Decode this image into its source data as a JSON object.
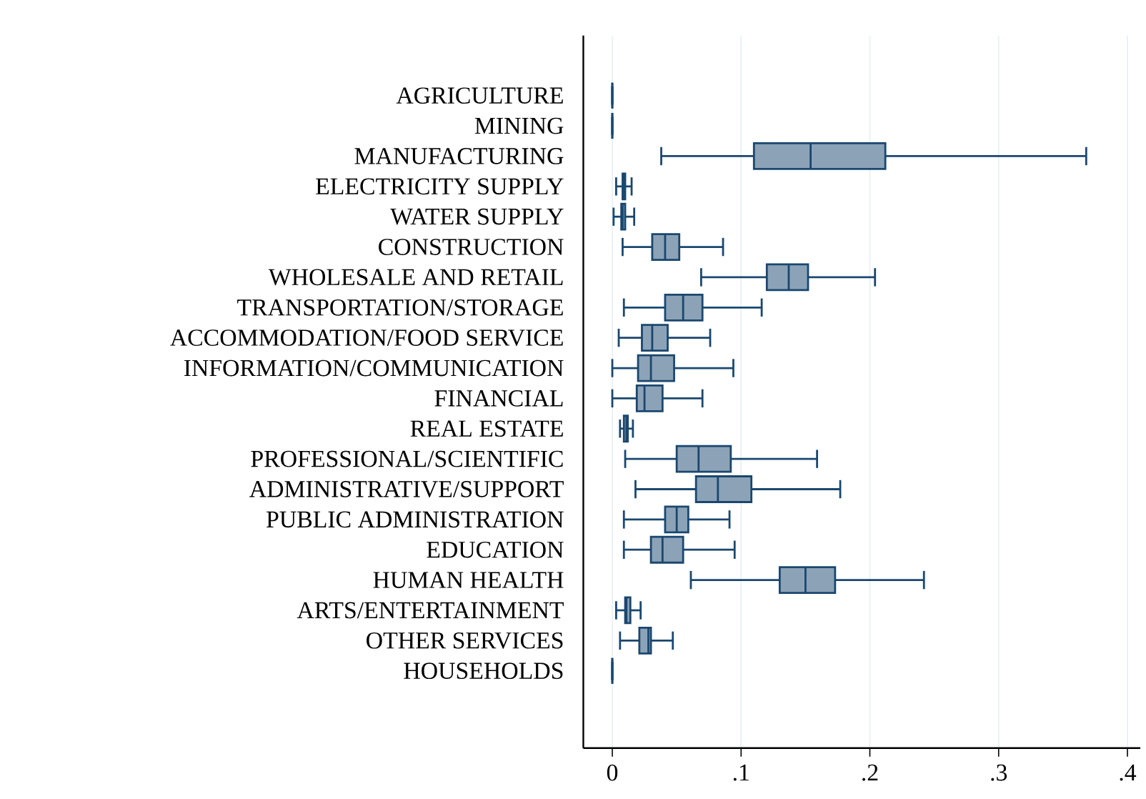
{
  "chart_data": {
    "type": "box",
    "orientation": "horizontal",
    "color": "#1a476f",
    "grid": "x",
    "categories": [
      "AGRICULTURE",
      "MINING",
      "MANUFACTURING",
      "ELECTRICITY SUPPLY",
      "WATER SUPPLY",
      "CONSTRUCTION",
      "WHOLESALE AND RETAIL",
      "TRANSPORTATION/STORAGE",
      "ACCOMMODATION/FOOD SERVICE",
      "INFORMATION/COMMUNICATION",
      "FINANCIAL",
      "REAL ESTATE",
      "PROFESSIONAL/SCIENTIFIC",
      "ADMINISTRATIVE/SUPPORT",
      "PUBLIC ADMINISTRATION",
      "EDUCATION",
      "HUMAN HEALTH",
      "ARTS/ENTERTAINMENT",
      "OTHER SERVICES",
      "HOUSEHOLDS"
    ],
    "boxes": [
      {
        "low": 0,
        "q1": 0,
        "median": 0,
        "q3": 0,
        "high": 0
      },
      {
        "low": 0,
        "q1": 0,
        "median": 0,
        "q3": 0,
        "high": 0
      },
      {
        "low": 0.038,
        "q1": 0.11,
        "median": 0.154,
        "q3": 0.212,
        "high": 0.368
      },
      {
        "low": 0.003,
        "q1": 0.008,
        "median": 0.009,
        "q3": 0.01,
        "high": 0.015
      },
      {
        "low": 0.001,
        "q1": 0.007,
        "median": 0.008,
        "q3": 0.01,
        "high": 0.017
      },
      {
        "low": 0.008,
        "q1": 0.031,
        "median": 0.041,
        "q3": 0.052,
        "high": 0.086
      },
      {
        "low": 0.069,
        "q1": 0.12,
        "median": 0.137,
        "q3": 0.152,
        "high": 0.204
      },
      {
        "low": 0.009,
        "q1": 0.041,
        "median": 0.055,
        "q3": 0.07,
        "high": 0.116
      },
      {
        "low": 0.005,
        "q1": 0.023,
        "median": 0.031,
        "q3": 0.043,
        "high": 0.076
      },
      {
        "low": 0,
        "q1": 0.02,
        "median": 0.03,
        "q3": 0.048,
        "high": 0.094
      },
      {
        "low": 0,
        "q1": 0.019,
        "median": 0.025,
        "q3": 0.039,
        "high": 0.07
      },
      {
        "low": 0.006,
        "q1": 0.009,
        "median": 0.011,
        "q3": 0.012,
        "high": 0.016
      },
      {
        "low": 0.01,
        "q1": 0.05,
        "median": 0.067,
        "q3": 0.092,
        "high": 0.159
      },
      {
        "low": 0.018,
        "q1": 0.065,
        "median": 0.082,
        "q3": 0.108,
        "high": 0.177
      },
      {
        "low": 0.009,
        "q1": 0.041,
        "median": 0.05,
        "q3": 0.059,
        "high": 0.091
      },
      {
        "low": 0.009,
        "q1": 0.03,
        "median": 0.039,
        "q3": 0.055,
        "high": 0.095
      },
      {
        "low": 0.061,
        "q1": 0.13,
        "median": 0.15,
        "q3": 0.173,
        "high": 0.242
      },
      {
        "low": 0.003,
        "q1": 0.01,
        "median": 0.011,
        "q3": 0.014,
        "high": 0.022
      },
      {
        "low": 0.006,
        "q1": 0.021,
        "median": 0.028,
        "q3": 0.03,
        "high": 0.047
      },
      {
        "low": 0,
        "q1": 0,
        "median": 0,
        "q3": 0,
        "high": 0
      }
    ],
    "xlim": [
      -0.0225,
      0.41
    ],
    "xticks": [
      0,
      {
        "value": 0.1,
        "label": ".1"
      },
      {
        "value": 0.2,
        "label": ".2"
      },
      {
        "value": 0.3,
        "label": ".3"
      },
      {
        "value": 0.4,
        "label": ".4"
      }
    ]
  }
}
